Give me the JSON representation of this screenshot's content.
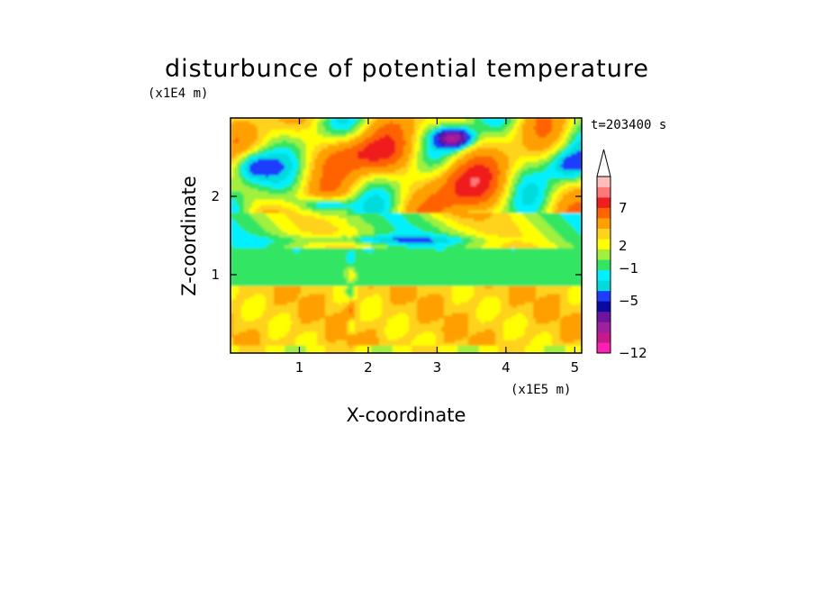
{
  "chart_data": {
    "type": "heatmap",
    "title": "disturbunce of potential temperature",
    "xlabel": "X-coordinate",
    "ylabel": "Z-coordinate",
    "x_scale_label": "(x1E5 m)",
    "y_scale_label": "(x1E4 m)",
    "time_label": "t=203400 s",
    "x_ticks": [
      "1",
      "2",
      "3",
      "4",
      "5"
    ],
    "x_tick_values": [
      1,
      2,
      3,
      4,
      5
    ],
    "y_ticks": [
      "1",
      "2"
    ],
    "y_tick_values": [
      1,
      2
    ],
    "xlim": [
      0,
      5.1
    ],
    "ylim": [
      0,
      3.0
    ],
    "colorbar": {
      "tick_labels": [
        "7",
        "2",
        "−1",
        "−5",
        "−12"
      ],
      "levels": [
        -12,
        -10,
        -8,
        -6,
        -5,
        -3,
        -2,
        -1,
        0,
        1,
        2,
        3,
        5,
        7,
        9,
        11
      ],
      "colors": [
        "#ff1fb4",
        "#c8198c",
        "#a01ea0",
        "#6e14a0",
        "#0a0aa0",
        "#1e3cff",
        "#00dcdc",
        "#00f0ff",
        "#32e664",
        "#a0f03c",
        "#ffff00",
        "#ffd21e",
        "#ffa000",
        "#ff6400",
        "#f01e1e",
        "#ff7878",
        "#ffbebe"
      ],
      "extend": "max"
    }
  }
}
